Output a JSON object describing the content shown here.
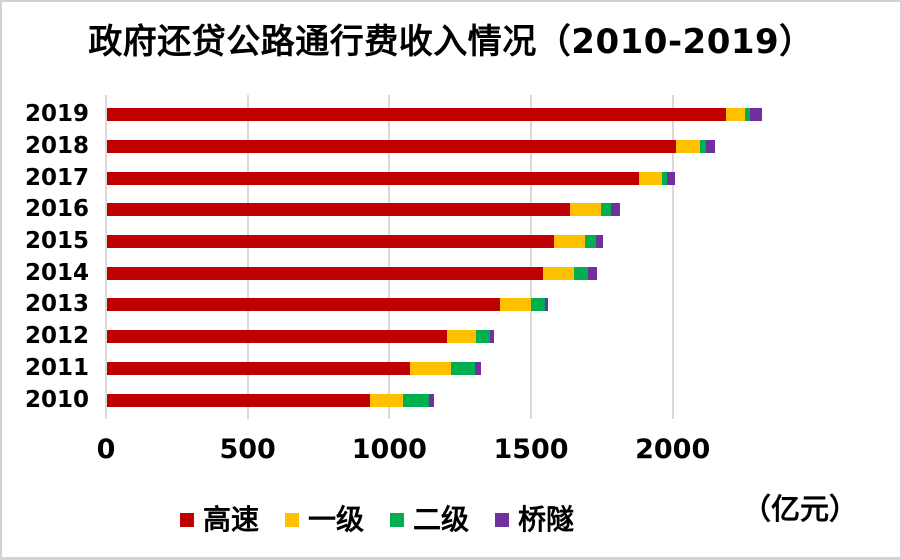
{
  "chart_data": {
    "type": "bar",
    "orientation": "horizontal",
    "stacked": true,
    "title": "政府还贷公路通行费收入情况（2010-2019）",
    "unit_label": "（亿元）",
    "categories": [
      "2019",
      "2018",
      "2017",
      "2016",
      "2015",
      "2014",
      "2013",
      "2012",
      "2011",
      "2010"
    ],
    "series": [
      {
        "name": "高速",
        "color": "#c00000",
        "values": [
          2186,
          2009,
          1879,
          1635,
          1576,
          1539,
          1386,
          1199,
          1070,
          929
        ]
      },
      {
        "name": "一级",
        "color": "#ffc000",
        "values": [
          67,
          85,
          78,
          109,
          110,
          108,
          109,
          104,
          145,
          116
        ]
      },
      {
        "name": "二级",
        "color": "#00b050",
        "values": [
          18,
          19,
          20,
          36,
          39,
          50,
          52,
          48,
          85,
          90
        ]
      },
      {
        "name": "桥隧",
        "color": "#7030a0",
        "values": [
          39,
          32,
          29,
          31,
          25,
          32,
          10,
          14,
          19,
          19
        ]
      }
    ],
    "x_ticks": [
      0,
      500,
      1000,
      1500,
      2000
    ],
    "xlim": [
      0,
      2800
    ],
    "grid": "vertical-only",
    "legend_position": "bottom",
    "gridline_color": "#d9d9d9",
    "background_color": "#ffffff"
  }
}
